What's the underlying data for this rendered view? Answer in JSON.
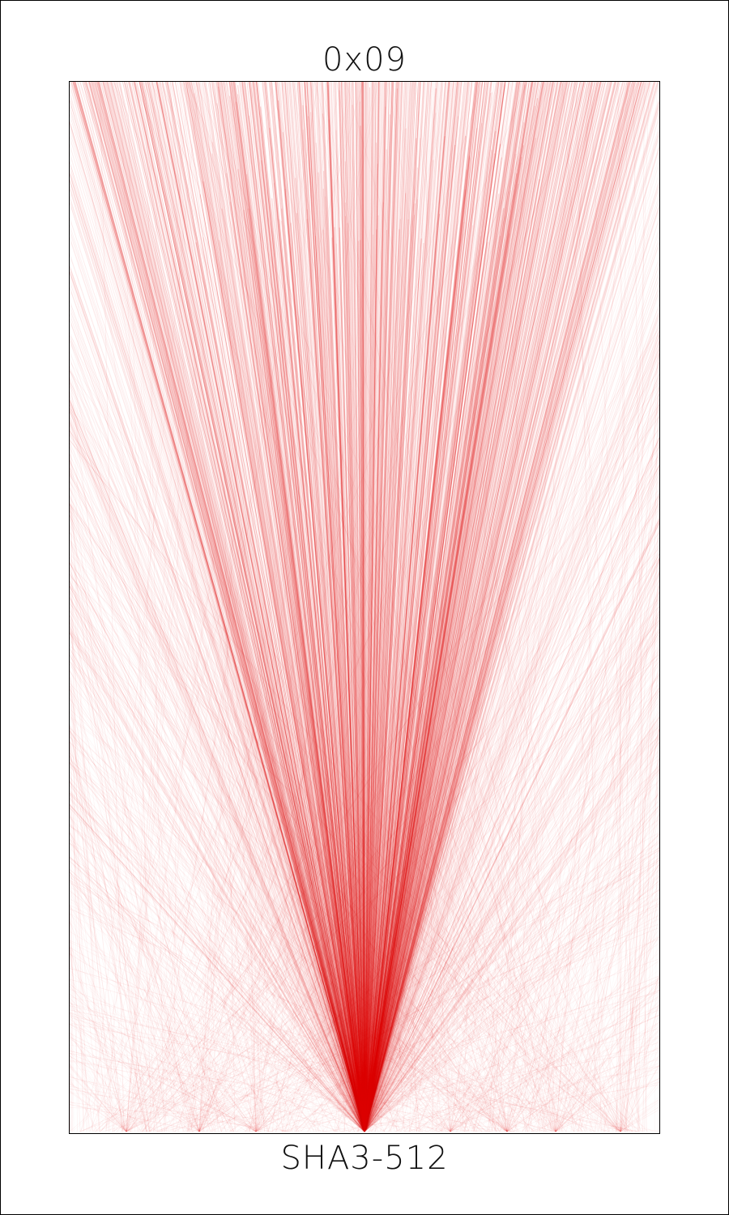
{
  "header": {
    "title": "0x09"
  },
  "footer": {
    "title": "SHA3-512"
  },
  "artwork": {
    "line_color": "#e00000",
    "background_color": "#ffffff",
    "frame_color": "#000000"
  }
}
